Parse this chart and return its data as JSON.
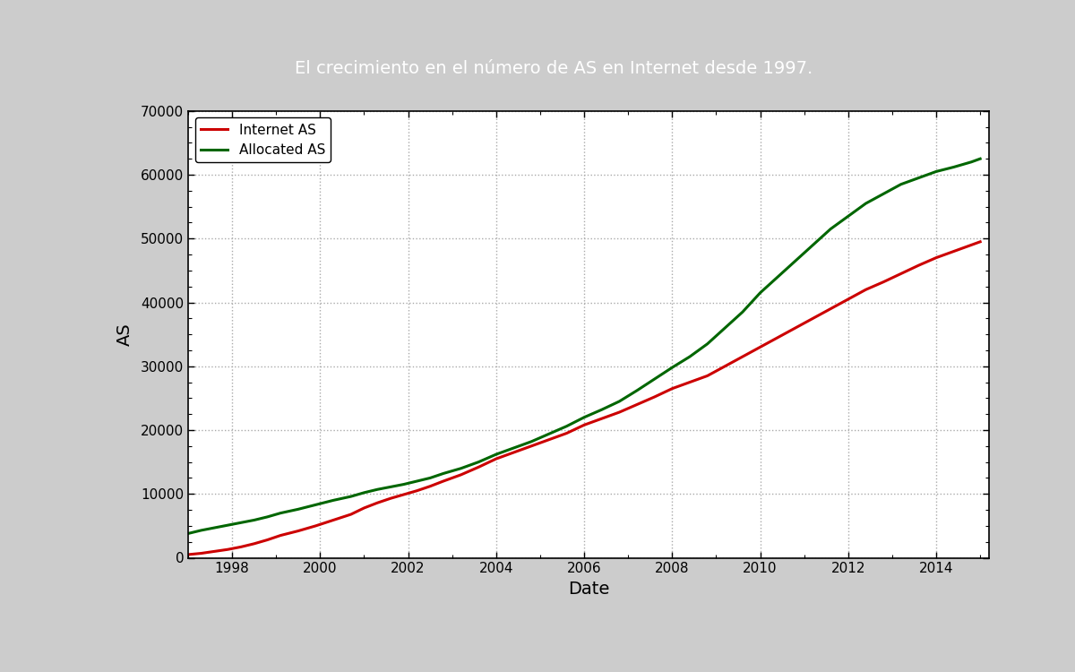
{
  "title": "El crecimiento en el número de AS en Internet desde 1997.",
  "title_bg_color": "#82b942",
  "title_text_color": "#ffffff",
  "xlabel": "Date",
  "ylabel": "AS",
  "plot_bg_color": "#ffffff",
  "outer_bg_color": "#cccccc",
  "panel_bg_color": "#f0f0f0",
  "grid_color": "#aaaaaa",
  "ylim": [
    0,
    70000
  ],
  "yticks": [
    0,
    10000,
    20000,
    30000,
    40000,
    50000,
    60000,
    70000
  ],
  "xticks": [
    1998,
    2000,
    2002,
    2004,
    2006,
    2008,
    2010,
    2012,
    2014
  ],
  "internet_as_color": "#cc0000",
  "allocated_as_color": "#006600",
  "line_width": 2.2,
  "internet_as_x": [
    1997.0,
    1997.3,
    1997.6,
    1997.9,
    1998.2,
    1998.5,
    1998.8,
    1999.1,
    1999.5,
    1999.9,
    2000.3,
    2000.7,
    2001.0,
    2001.3,
    2001.6,
    2001.9,
    2002.2,
    2002.5,
    2002.8,
    2003.2,
    2003.6,
    2004.0,
    2004.4,
    2004.8,
    2005.2,
    2005.6,
    2006.0,
    2006.4,
    2006.8,
    2007.2,
    2007.6,
    2008.0,
    2008.4,
    2008.8,
    2009.2,
    2009.6,
    2010.0,
    2010.4,
    2010.8,
    2011.2,
    2011.6,
    2012.0,
    2012.4,
    2012.8,
    2013.2,
    2013.6,
    2014.0,
    2014.4,
    2014.8,
    2015.0
  ],
  "internet_as_y": [
    500,
    700,
    1000,
    1300,
    1700,
    2200,
    2800,
    3500,
    4200,
    5000,
    5900,
    6800,
    7800,
    8600,
    9300,
    9900,
    10500,
    11200,
    12000,
    13000,
    14200,
    15500,
    16500,
    17500,
    18500,
    19500,
    20800,
    21800,
    22800,
    24000,
    25200,
    26500,
    27500,
    28500,
    30000,
    31500,
    33000,
    34500,
    36000,
    37500,
    39000,
    40500,
    42000,
    43200,
    44500,
    45800,
    47000,
    48000,
    49000,
    49500
  ],
  "allocated_as_x": [
    1997.0,
    1997.3,
    1997.6,
    1997.9,
    1998.2,
    1998.5,
    1998.8,
    1999.1,
    1999.5,
    1999.9,
    2000.3,
    2000.7,
    2001.0,
    2001.3,
    2001.6,
    2001.9,
    2002.2,
    2002.5,
    2002.8,
    2003.2,
    2003.6,
    2004.0,
    2004.4,
    2004.8,
    2005.2,
    2005.6,
    2006.0,
    2006.4,
    2006.8,
    2007.2,
    2007.6,
    2008.0,
    2008.4,
    2008.8,
    2009.2,
    2009.6,
    2010.0,
    2010.4,
    2010.8,
    2011.2,
    2011.6,
    2012.0,
    2012.4,
    2012.8,
    2013.2,
    2013.6,
    2014.0,
    2014.4,
    2014.8,
    2015.0
  ],
  "allocated_as_y": [
    3800,
    4300,
    4700,
    5100,
    5500,
    5900,
    6400,
    7000,
    7600,
    8300,
    9000,
    9600,
    10200,
    10700,
    11100,
    11500,
    12000,
    12500,
    13200,
    14000,
    15000,
    16200,
    17200,
    18200,
    19400,
    20600,
    22000,
    23200,
    24500,
    26200,
    28000,
    29800,
    31500,
    33500,
    36000,
    38500,
    41500,
    44000,
    46500,
    49000,
    51500,
    53500,
    55500,
    57000,
    58500,
    59500,
    60500,
    61200,
    62000,
    62500
  ],
  "legend_internet_label": "Internet AS",
  "legend_allocated_label": "Allocated AS",
  "font_family": "DejaVu Sans",
  "title_fontsize": 14,
  "axis_label_fontsize": 14,
  "tick_fontsize": 11,
  "legend_fontsize": 11
}
